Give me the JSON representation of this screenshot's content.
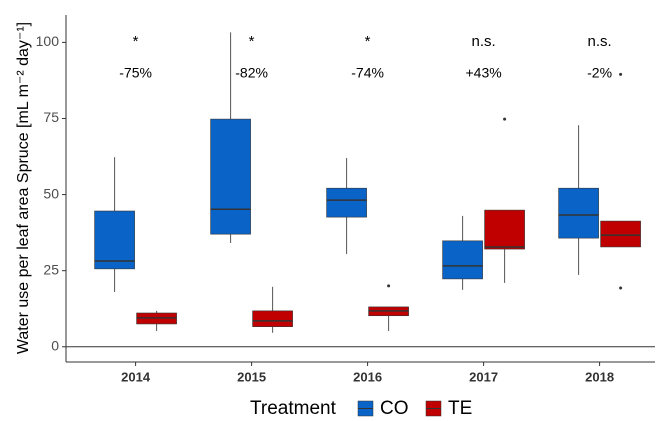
{
  "chart_data": {
    "type": "boxplot",
    "y_label": "Water use per leaf area Spruce [mL m⁻² day⁻¹]",
    "categories": [
      "2014",
      "2015",
      "2016",
      "2017",
      "2018"
    ],
    "ylim": [
      -5,
      109
    ],
    "yticks": [
      0,
      25,
      50,
      75,
      100
    ],
    "hline": 0,
    "significance": [
      "*",
      "*",
      "*",
      "n.s.",
      "n.s."
    ],
    "change": [
      "-75%",
      "-82%",
      "-74%",
      "+43%",
      "-2%"
    ],
    "legend_title": "Treatment",
    "series": [
      {
        "name": "CO",
        "color": "#0a64c8",
        "boxes": [
          {
            "low": 18.0,
            "q1": 25.6,
            "median": 28.2,
            "q3": 44.6,
            "high": 62.3,
            "outliers": []
          },
          {
            "low": 34.1,
            "q1": 37.0,
            "median": 45.2,
            "q3": 74.8,
            "high": 103.3,
            "outliers": []
          },
          {
            "low": 30.5,
            "q1": 42.6,
            "median": 48.2,
            "q3": 52.1,
            "high": 62.0,
            "outliers": []
          },
          {
            "low": 18.7,
            "q1": 22.3,
            "median": 26.6,
            "q3": 34.8,
            "high": 43.0,
            "outliers": []
          },
          {
            "low": 23.6,
            "q1": 35.7,
            "median": 43.3,
            "q3": 52.1,
            "high": 72.8,
            "outliers": []
          }
        ]
      },
      {
        "name": "TE",
        "color": "#c00000",
        "boxes": [
          {
            "low": 5.2,
            "q1": 7.5,
            "median": 9.5,
            "q3": 11.1,
            "high": 11.8,
            "outliers": []
          },
          {
            "low": 4.6,
            "q1": 6.6,
            "median": 8.5,
            "q3": 11.8,
            "high": 19.7,
            "outliers": []
          },
          {
            "low": 5.2,
            "q1": 10.2,
            "median": 11.8,
            "q3": 13.1,
            "high": 13.1,
            "outliers": [
              20.0
            ]
          },
          {
            "low": 21.0,
            "q1": 32.1,
            "median": 32.8,
            "q3": 44.9,
            "high": 44.9,
            "outliers": [
              74.8
            ]
          },
          {
            "low": 32.8,
            "q1": 32.8,
            "median": 36.7,
            "q3": 41.3,
            "high": 41.3,
            "outliers": [
              89.5,
              19.3
            ]
          }
        ]
      }
    ]
  }
}
